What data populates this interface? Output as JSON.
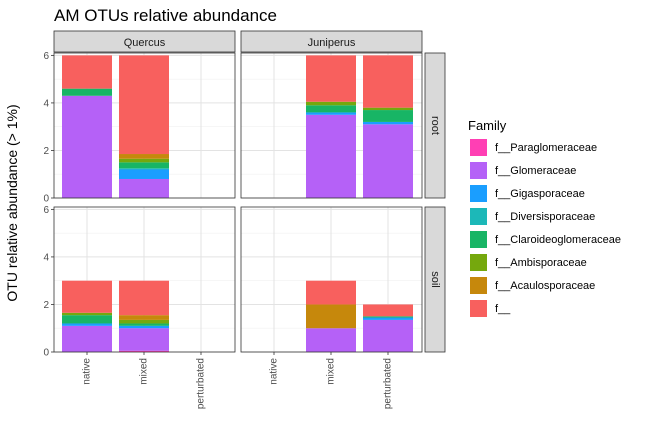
{
  "chart_data": {
    "type": "bar",
    "stacked": true,
    "title": "AM OTUs relative abundance",
    "ylabel": "OTU relative abundance (> 1%)",
    "xlabel": "",
    "ylim": [
      0,
      6.1
    ],
    "y_ticks": [
      0,
      2,
      4,
      6
    ],
    "grid": true,
    "categories": [
      "native",
      "mixed",
      "perturbated"
    ],
    "facet_columns": [
      "Quercus",
      "Juniperus"
    ],
    "facet_rows": [
      "root",
      "soil"
    ],
    "legend": {
      "title": "Family",
      "placement": "right",
      "entries": [
        {
          "name": "f__Paraglomeraceae",
          "color": "#FF3FB4"
        },
        {
          "name": "f__Glomeraceae",
          "color": "#B561F7"
        },
        {
          "name": "f__Gigasporaceae",
          "color": "#1A9EFF"
        },
        {
          "name": "f__Diversisporaceae",
          "color": "#1CB8B8"
        },
        {
          "name": "f__Claroideoglomeraceae",
          "color": "#18B565"
        },
        {
          "name": "f__Ambisporaceae",
          "color": "#75A80D"
        },
        {
          "name": "f__Acaulosporaceae",
          "color": "#C6880C"
        },
        {
          "name": "f__",
          "color": "#F8605E"
        }
      ]
    },
    "panels": [
      {
        "column": "Quercus",
        "row": "root",
        "bars": [
          {
            "category": "native",
            "segments": [
              {
                "family": "f__Glomeraceae",
                "value": 4.3
              },
              {
                "family": "f__Claroideoglomeraceae",
                "value": 0.3
              },
              {
                "family": "f__",
                "value": 1.4
              }
            ]
          },
          {
            "category": "mixed",
            "segments": [
              {
                "family": "f__Glomeraceae",
                "value": 0.8
              },
              {
                "family": "f__Gigasporaceae",
                "value": 0.4
              },
              {
                "family": "f__Diversisporaceae",
                "value": 0.05
              },
              {
                "family": "f__Claroideoglomeraceae",
                "value": 0.25
              },
              {
                "family": "f__Ambisporaceae",
                "value": 0.15
              },
              {
                "family": "f__Acaulosporaceae",
                "value": 0.2
              },
              {
                "family": "f__",
                "value": 4.15
              }
            ]
          }
        ]
      },
      {
        "column": "Juniperus",
        "row": "root",
        "bars": [
          {
            "category": "mixed",
            "segments": [
              {
                "family": "f__Glomeraceae",
                "value": 3.5
              },
              {
                "family": "f__Gigasporaceae",
                "value": 0.1
              },
              {
                "family": "f__Claroideoglomeraceae",
                "value": 0.3
              },
              {
                "family": "f__Ambisporaceae",
                "value": 0.15
              },
              {
                "family": "f__",
                "value": 1.95
              }
            ]
          },
          {
            "category": "perturbated",
            "segments": [
              {
                "family": "f__Glomeraceae",
                "value": 3.1
              },
              {
                "family": "f__Gigasporaceae",
                "value": 0.1
              },
              {
                "family": "f__Claroideoglomeraceae",
                "value": 0.5
              },
              {
                "family": "f__Ambisporaceae",
                "value": 0.1
              },
              {
                "family": "f__",
                "value": 2.2
              }
            ]
          }
        ]
      },
      {
        "column": "Quercus",
        "row": "soil",
        "bars": [
          {
            "category": "native",
            "segments": [
              {
                "family": "f__Glomeraceae",
                "value": 1.1
              },
              {
                "family": "f__Gigasporaceae",
                "value": 0.1
              },
              {
                "family": "f__Claroideoglomeraceae",
                "value": 0.35
              },
              {
                "family": "f__Ambisporaceae",
                "value": 0.1
              },
              {
                "family": "f__",
                "value": 1.35
              }
            ]
          },
          {
            "category": "mixed",
            "segments": [
              {
                "family": "f__Paraglomeraceae",
                "value": 0.05
              },
              {
                "family": "f__Glomeraceae",
                "value": 0.95
              },
              {
                "family": "f__Gigasporaceae",
                "value": 0.1
              },
              {
                "family": "f__Claroideoglomeraceae",
                "value": 0.1
              },
              {
                "family": "f__Ambisporaceae",
                "value": 0.15
              },
              {
                "family": "f__Acaulosporaceae",
                "value": 0.2
              },
              {
                "family": "f__",
                "value": 1.45
              }
            ]
          }
        ]
      },
      {
        "column": "Juniperus",
        "row": "soil",
        "bars": [
          {
            "category": "mixed",
            "segments": [
              {
                "family": "f__Glomeraceae",
                "value": 1.0
              },
              {
                "family": "f__Acaulosporaceae",
                "value": 1.0
              },
              {
                "family": "f__",
                "value": 1.0
              }
            ]
          },
          {
            "category": "perturbated",
            "segments": [
              {
                "family": "f__Glomeraceae",
                "value": 1.35
              },
              {
                "family": "f__Gigasporaceae",
                "value": 0.1
              },
              {
                "family": "f__Claroideoglomeraceae",
                "value": 0.05
              },
              {
                "family": "f__",
                "value": 0.5
              }
            ]
          }
        ]
      }
    ]
  }
}
